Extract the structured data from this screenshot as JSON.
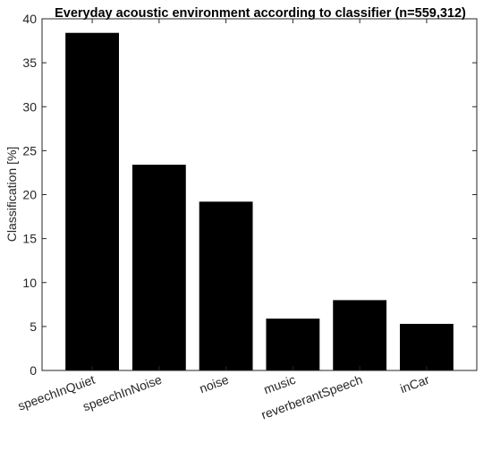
{
  "chart_data": {
    "type": "bar",
    "title": "Everyday acoustic environment according to classifier (n=559,312)",
    "xlabel": "",
    "ylabel": "Classification [%]",
    "categories": [
      "speechInQuiet",
      "speechInNoise",
      "noise",
      "music",
      "reverberantSpeech",
      "inCar"
    ],
    "values": [
      38.4,
      23.4,
      19.2,
      5.9,
      8.0,
      5.3
    ],
    "ylim": [
      0,
      40
    ],
    "yticks": [
      0,
      5,
      10,
      15,
      20,
      25,
      30,
      35,
      40
    ],
    "grid": false,
    "bar_color": "#000000"
  }
}
